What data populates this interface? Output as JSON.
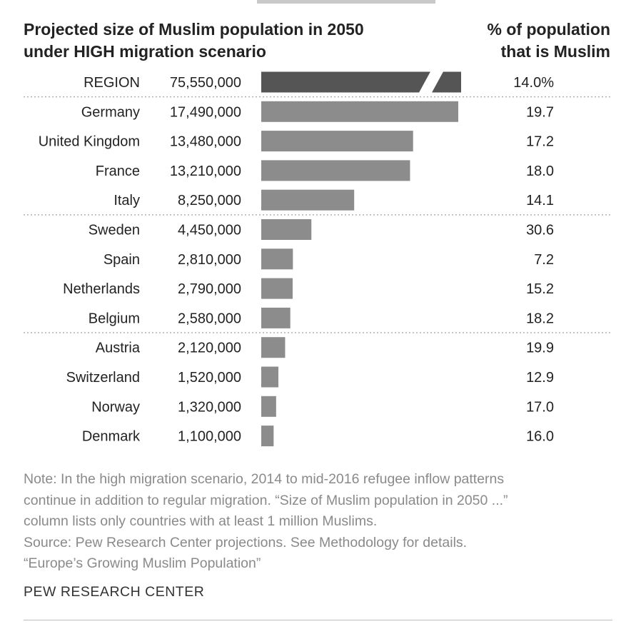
{
  "header": {
    "title_line1": "Projected size of Muslim population in 2050",
    "title_line2": "under HIGH migration scenario",
    "pct_line1": "% of population",
    "pct_line2": "that is Muslim"
  },
  "chart_data": {
    "type": "bar",
    "orientation": "horizontal",
    "categories": [
      "REGION",
      "Germany",
      "United Kingdom",
      "France",
      "Italy",
      "Sweden",
      "Spain",
      "Netherlands",
      "Belgium",
      "Austria",
      "Switzerland",
      "Norway",
      "Denmark"
    ],
    "value_labels": [
      "75,550,000",
      "17,490,000",
      "13,480,000",
      "13,210,000",
      "8,250,000",
      "4,450,000",
      "2,810,000",
      "2,790,000",
      "2,580,000",
      "2,120,000",
      "1,520,000",
      "1,320,000",
      "1,100,000"
    ],
    "values": [
      75550000,
      17490000,
      13480000,
      13210000,
      8250000,
      4450000,
      2810000,
      2790000,
      2580000,
      2120000,
      1520000,
      1320000,
      1100000
    ],
    "pct_labels": [
      "14.0%",
      "19.7",
      "17.2",
      "18.0",
      "14.1",
      "30.6",
      "7.2",
      "15.2",
      "18.2",
      "19.9",
      "12.9",
      "17.0",
      "16.0"
    ],
    "pct_values": [
      14.0,
      19.7,
      17.2,
      18.0,
      14.1,
      30.6,
      7.2,
      15.2,
      18.2,
      19.9,
      12.9,
      17.0,
      16.0
    ],
    "broken_bar_category": "REGION",
    "group_separators_after": [
      "REGION",
      "Italy",
      "Belgium"
    ],
    "colors": {
      "region_bar": "#555555",
      "country_bar": "#8c8c8c",
      "separator": "#b0b0b0"
    }
  },
  "notes": {
    "line1": "Note: In the high migration scenario, 2014 to mid-2016 refugee inflow patterns",
    "line2": "continue in addition to regular migration. “Size of Muslim population in 2050 ...”",
    "line3": "column lists only countries with at least 1 million Muslims.",
    "line4": "Source: Pew Research Center projections. See Methodology for details.",
    "line5": "“Europe’s Growing Muslim Population”"
  },
  "footer": {
    "brand": "PEW RESEARCH CENTER"
  }
}
